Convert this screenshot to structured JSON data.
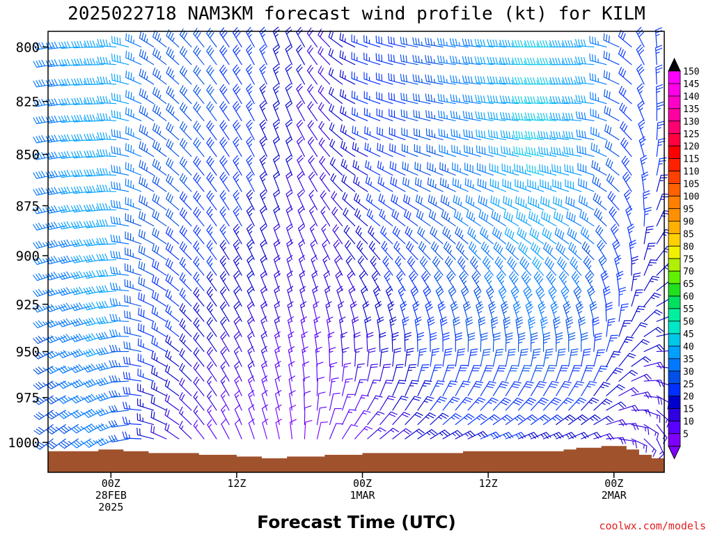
{
  "chart_data": {
    "type": "wind-profile",
    "title": "2025022718 NAM3KM forecast wind profile (kt) for KILM",
    "xlabel": "Forecast Time (UTC)",
    "ylabel": "",
    "watermark": "coolwx.com/models",
    "y_axis": {
      "levels_hpa": [
        800,
        825,
        850,
        875,
        900,
        925,
        950,
        975,
        1000
      ],
      "range": [
        793,
        1017
      ]
    },
    "x_axis": {
      "range_hours": [
        -5,
        44
      ],
      "ticks": [
        {
          "hour": 0,
          "lines": [
            "00Z",
            "28FEB",
            "2025"
          ]
        },
        {
          "hour": 10,
          "lines": [
            "12Z"
          ]
        },
        {
          "hour": 20,
          "lines": [
            "00Z",
            "1MAR"
          ]
        },
        {
          "hour": 30,
          "lines": [
            "12Z"
          ]
        },
        {
          "hour": 40,
          "lines": [
            "00Z",
            "2MAR"
          ]
        }
      ]
    },
    "legend": {
      "position": "right",
      "units": "kt",
      "levels": [
        5,
        10,
        15,
        20,
        25,
        30,
        35,
        40,
        45,
        50,
        55,
        60,
        65,
        70,
        75,
        80,
        85,
        90,
        95,
        100,
        105,
        110,
        115,
        120,
        125,
        130,
        135,
        140,
        145,
        150
      ],
      "colors": [
        "#8000ff",
        "#5a00ff",
        "#3000e0",
        "#0000cc",
        "#0030ff",
        "#0050e8",
        "#0078ff",
        "#00a0ff",
        "#00c8e8",
        "#00e8c8",
        "#00f0a0",
        "#00e060",
        "#20e020",
        "#60f000",
        "#b0f000",
        "#f0f000",
        "#ffd000",
        "#ffb000",
        "#ff9000",
        "#ff8000",
        "#ff6000",
        "#ff4000",
        "#ff2000",
        "#ff0000",
        "#ff0040",
        "#ff0070",
        "#ff00a0",
        "#ff00c8",
        "#ff00e8",
        "#ff00ff"
      ]
    },
    "terrain": {
      "color": "#a0522d",
      "surface_pressure_hpa": [
        {
          "hour": -5,
          "p": 1005
        },
        {
          "hour": -2,
          "p": 1005
        },
        {
          "hour": -1,
          "p": 1004
        },
        {
          "hour": 1,
          "p": 1005
        },
        {
          "hour": 3,
          "p": 1006
        },
        {
          "hour": 7,
          "p": 1007
        },
        {
          "hour": 10,
          "p": 1008
        },
        {
          "hour": 12,
          "p": 1009
        },
        {
          "hour": 14,
          "p": 1008
        },
        {
          "hour": 17,
          "p": 1007
        },
        {
          "hour": 20,
          "p": 1006
        },
        {
          "hour": 25,
          "p": 1006
        },
        {
          "hour": 28,
          "p": 1005
        },
        {
          "hour": 31,
          "p": 1005
        },
        {
          "hour": 34,
          "p": 1005
        },
        {
          "hour": 36,
          "p": 1004
        },
        {
          "hour": 37,
          "p": 1003
        },
        {
          "hour": 39,
          "p": 1002
        },
        {
          "hour": 41,
          "p": 1004
        },
        {
          "hour": 42,
          "p": 1007
        },
        {
          "hour": 43,
          "p": 1009
        },
        {
          "hour": 44,
          "p": 1010
        }
      ]
    },
    "barb_hours": [
      -4.6,
      -3.6,
      -2.6,
      -1.6,
      -0.6,
      0.4,
      1.4,
      2.4,
      3.4,
      4.4,
      5.4,
      6.4,
      7.4,
      8.4,
      9.4,
      10.4,
      11.4,
      12.4,
      13.4,
      14.4,
      15.4,
      16.4,
      17.4,
      18.4,
      19.4,
      20.4,
      21.4,
      22.4,
      23.4,
      24.4,
      25.4,
      26.4,
      27.4,
      28.4,
      29.4,
      30.4,
      31.4,
      32.4,
      33.4,
      34.4,
      35.4,
      36.4,
      37.4,
      38.4,
      39.4,
      40.4,
      41.4,
      42.4,
      43.4
    ],
    "barb_levels_hpa": [
      800,
      808,
      817,
      826,
      834,
      843,
      851,
      860,
      868,
      877,
      885,
      894,
      902,
      910,
      918,
      926,
      934,
      942,
      950,
      958,
      966,
      974,
      982,
      990,
      998
    ],
    "wind_keyframes": [
      {
        "hour": -5,
        "upper": {
          "dir": 260,
          "kt": 38
        },
        "lower": {
          "dir": 230,
          "kt": 30
        }
      },
      {
        "hour": 0,
        "upper": {
          "dir": 270,
          "kt": 45
        },
        "lower": {
          "dir": 240,
          "kt": 38
        }
      },
      {
        "hour": 3,
        "upper": {
          "dir": 300,
          "kt": 35
        },
        "lower": {
          "dir": 280,
          "kt": 22
        }
      },
      {
        "hour": 7,
        "upper": {
          "dir": 320,
          "kt": 32
        },
        "lower": {
          "dir": 320,
          "kt": 14
        }
      },
      {
        "hour": 11,
        "upper": {
          "dir": 330,
          "kt": 28
        },
        "lower": {
          "dir": 340,
          "kt": 10
        }
      },
      {
        "hour": 14,
        "upper": {
          "dir": 340,
          "kt": 22
        },
        "lower": {
          "dir": 350,
          "kt": 8
        }
      },
      {
        "hour": 17,
        "upper": {
          "dir": 320,
          "kt": 18
        },
        "lower": {
          "dir": 20,
          "kt": 10
        }
      },
      {
        "hour": 20,
        "upper": {
          "dir": 290,
          "kt": 25
        },
        "lower": {
          "dir": 50,
          "kt": 14
        }
      },
      {
        "hour": 25,
        "upper": {
          "dir": 280,
          "kt": 32
        },
        "lower": {
          "dir": 60,
          "kt": 24
        }
      },
      {
        "hour": 30,
        "upper": {
          "dir": 275,
          "kt": 40
        },
        "lower": {
          "dir": 70,
          "kt": 25
        }
      },
      {
        "hour": 34,
        "upper": {
          "dir": 270,
          "kt": 48
        },
        "lower": {
          "dir": 70,
          "kt": 24
        }
      },
      {
        "hour": 38,
        "upper": {
          "dir": 270,
          "kt": 42
        },
        "lower": {
          "dir": 70,
          "kt": 20
        }
      },
      {
        "hour": 41,
        "upper": {
          "dir": 300,
          "kt": 30
        },
        "lower": {
          "dir": 110,
          "kt": 15
        }
      },
      {
        "hour": 44,
        "upper": {
          "dir": 10,
          "kt": 25
        },
        "lower": {
          "dir": 170,
          "kt": 15
        }
      }
    ]
  }
}
